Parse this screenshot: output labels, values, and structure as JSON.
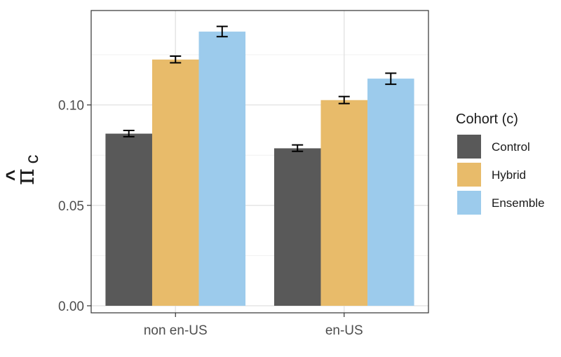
{
  "chart_data": {
    "type": "bar",
    "ylabel": {
      "symbol": "π",
      "subscript": "c",
      "accent": "^"
    },
    "xlabel": "",
    "categories": [
      "non en-US",
      "en-US"
    ],
    "ylim": [
      -0.0035,
      0.147
    ],
    "yticks": [
      0.0,
      0.05,
      0.1
    ],
    "ytick_labels": [
      "0.00",
      "0.05",
      "0.10"
    ],
    "grid": true,
    "legend": {
      "title": "Cohort (c)",
      "position": "right"
    },
    "series": [
      {
        "name": "Control",
        "color": "#595959",
        "values": [
          0.0857,
          0.0784
        ],
        "err_low": [
          0.0842,
          0.0769
        ],
        "err_high": [
          0.0873,
          0.0801
        ]
      },
      {
        "name": "Hybrid",
        "color": "#e8bb6a",
        "values": [
          0.1226,
          0.1024
        ],
        "err_low": [
          0.121,
          0.1007
        ],
        "err_high": [
          0.1243,
          0.1042
        ]
      },
      {
        "name": "Ensemble",
        "color": "#9ccbec",
        "values": [
          0.1365,
          0.1131
        ],
        "err_low": [
          0.134,
          0.1103
        ],
        "err_high": [
          0.1391,
          0.1158
        ]
      }
    ]
  }
}
